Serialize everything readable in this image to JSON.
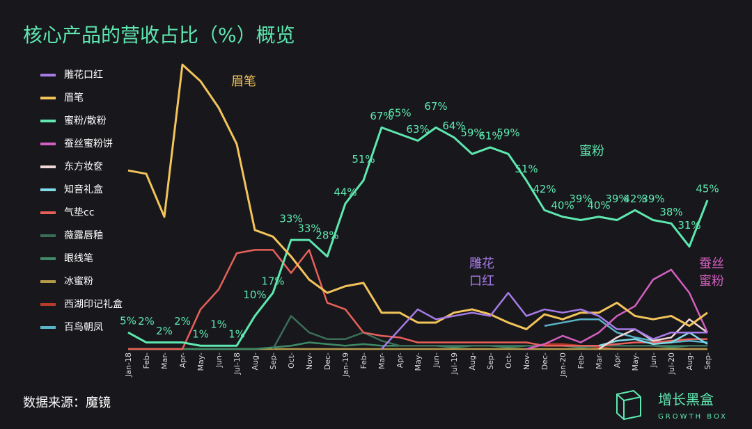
{
  "chart_data": {
    "type": "line",
    "title": "核心产品的营收占比（%）概览",
    "source": "数据来源：魔镜",
    "logo": {
      "name": "增长黑盒",
      "sub": "GROWTH BOX"
    },
    "annotations": [
      "眉笔",
      "蜜粉",
      "雕花",
      "口红",
      "蚕丝",
      "蜜粉"
    ],
    "categories": [
      "Jan-18",
      "Feb-",
      "Mar-",
      "Apr-",
      "May-",
      "Jun-",
      "Jul-18",
      "Aug-",
      "Sep-",
      "Oct-",
      "Nov-",
      "Dec-",
      "Jan-19",
      "Feb-",
      "Mar-",
      "Apr-",
      "May-",
      "Jun-",
      "Jul-19",
      "Aug-",
      "Sep-",
      "Oct-",
      "Nov-",
      "Dec-",
      "Jan-20",
      "Feb-",
      "Mar-",
      "Apr-",
      "May-",
      "Jun-",
      "Jul-20",
      "Aug-",
      "Sep-"
    ],
    "ylim": [
      0,
      90
    ],
    "legend": "left",
    "series": [
      {
        "name": "雕花口红",
        "color": "#a77be8",
        "values": [
          null,
          null,
          null,
          null,
          null,
          null,
          null,
          null,
          null,
          null,
          null,
          null,
          null,
          null,
          0,
          6,
          12,
          9,
          10,
          11,
          10,
          17,
          10,
          12,
          11,
          12,
          10,
          6,
          6,
          3,
          5,
          5,
          5
        ]
      },
      {
        "name": "眉笔",
        "color": "#f2c45a",
        "values": [
          54,
          53,
          40,
          86,
          81,
          73,
          62,
          36,
          34,
          28,
          21,
          17,
          19,
          20,
          11,
          11,
          8,
          8,
          11,
          12,
          10.5,
          8,
          6,
          10.5,
          9,
          11,
          11,
          14,
          10,
          9,
          10,
          7,
          11
        ]
      },
      {
        "name": "蜜粉/散粉",
        "color": "#5ee8b0",
        "values": [
          5,
          2,
          2,
          2,
          1,
          1,
          1,
          10,
          17,
          33,
          33,
          28,
          44,
          51,
          67,
          65,
          63,
          67,
          64,
          59,
          61,
          59,
          51,
          42,
          40,
          39,
          40,
          39,
          42,
          39,
          38,
          31,
          45
        ],
        "value_labels": [
          "5%",
          "2%",
          "2%",
          "2%",
          "1%",
          "1%",
          "1%",
          "10%",
          "17%",
          "33%",
          "33%",
          "28%",
          "44%",
          "51%",
          "67%",
          "65%",
          "63%",
          "67%",
          "64%",
          "59%",
          "61%",
          "59%",
          "51%",
          "42%",
          "40%",
          "39%",
          "40%",
          "39%",
          "42%",
          "39%",
          "38%",
          "31%",
          "45%"
        ]
      },
      {
        "name": "蚕丝蜜粉饼",
        "color": "#d45fc0",
        "values": [
          null,
          null,
          null,
          null,
          null,
          null,
          null,
          null,
          null,
          null,
          null,
          null,
          null,
          null,
          null,
          null,
          null,
          null,
          null,
          null,
          null,
          null,
          0,
          1.5,
          4,
          2,
          5,
          10,
          13,
          21,
          24,
          17,
          5
        ]
      },
      {
        "name": "东方妆奁",
        "color": "#f0d8d8",
        "values": [
          null,
          null,
          null,
          null,
          null,
          null,
          null,
          null,
          null,
          null,
          null,
          null,
          null,
          null,
          null,
          null,
          null,
          null,
          null,
          null,
          null,
          null,
          null,
          null,
          null,
          null,
          0,
          3.5,
          6,
          2.5,
          3.5,
          9,
          5
        ]
      },
      {
        "name": "知音礼盒",
        "color": "#7fdcec",
        "values": [
          null,
          null,
          null,
          null,
          null,
          null,
          null,
          null,
          null,
          null,
          null,
          null,
          null,
          null,
          null,
          null,
          null,
          null,
          null,
          null,
          null,
          null,
          null,
          null,
          null,
          null,
          1,
          2.5,
          3,
          1.5,
          2,
          5,
          1.5
        ]
      },
      {
        "name": "气垫cc",
        "color": "#e8605a",
        "values": [
          0,
          0,
          0,
          0,
          12,
          18,
          29,
          30,
          30,
          23,
          30,
          14,
          12,
          5,
          4,
          3.5,
          2,
          2,
          2,
          2,
          2,
          2,
          2,
          1,
          1,
          1,
          1,
          1.5,
          2,
          2,
          2.5,
          3,
          3
        ]
      },
      {
        "name": "薇露唇釉",
        "color": "#3a6e58",
        "values": [
          null,
          null,
          null,
          null,
          null,
          null,
          null,
          null,
          0,
          10,
          5,
          3,
          3,
          5,
          2.5,
          1,
          1,
          1,
          1,
          1,
          1,
          1,
          1,
          1,
          1,
          1,
          1,
          1,
          1,
          1,
          1,
          1,
          1
        ]
      },
      {
        "name": "眼线笔",
        "color": "#3f8a66",
        "values": [
          0,
          0,
          0,
          0,
          0,
          0,
          0,
          0,
          0.5,
          1,
          2,
          1.5,
          1,
          1.5,
          1,
          1,
          1,
          1,
          0.5,
          1,
          1,
          0.5,
          1,
          1,
          1,
          0.5,
          1,
          1,
          1,
          1,
          0.5,
          1,
          1
        ]
      },
      {
        "name": "冰蜜粉",
        "color": "#b59a4a",
        "values": [
          0,
          0,
          0,
          0,
          0,
          0,
          0,
          0,
          0,
          0,
          0,
          0,
          0,
          0,
          0,
          0,
          0,
          0,
          0,
          0,
          0,
          0,
          0,
          0,
          0,
          0,
          0,
          0,
          0,
          0,
          0,
          0,
          0
        ]
      },
      {
        "name": "西湖印记礼盒",
        "color": "#b83a2a",
        "values": [
          null,
          null,
          null,
          null,
          null,
          null,
          null,
          null,
          null,
          null,
          null,
          null,
          null,
          null,
          null,
          null,
          null,
          null,
          null,
          null,
          null,
          null,
          0,
          1.5,
          1.5,
          1,
          0.5,
          0,
          0,
          0,
          0,
          0,
          0
        ]
      },
      {
        "name": "百鸟朝凤",
        "color": "#5ab4c8",
        "values": [
          null,
          null,
          null,
          null,
          null,
          null,
          null,
          null,
          null,
          null,
          null,
          null,
          null,
          null,
          null,
          null,
          null,
          null,
          null,
          null,
          null,
          null,
          null,
          7,
          8,
          9,
          9,
          5,
          3.5,
          2.5,
          2,
          2.5,
          2
        ]
      }
    ]
  }
}
